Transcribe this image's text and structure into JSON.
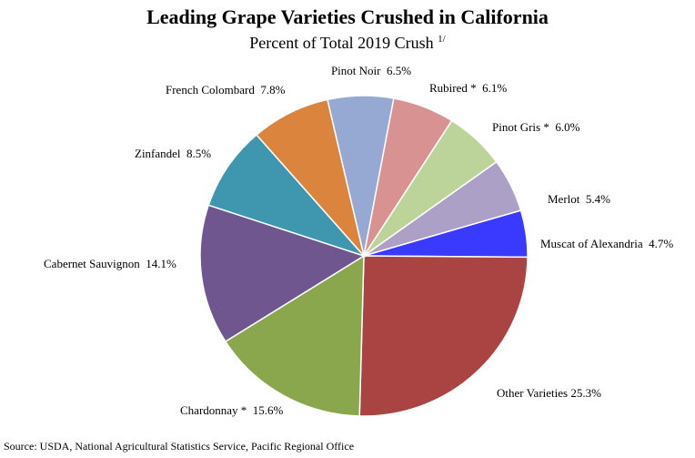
{
  "chart_data": {
    "type": "pie",
    "title": "Leading Grape Varieties Crushed in California",
    "subtitle": "Percent of Total 2019 Crush",
    "subtitle_footnote": "1/",
    "slices": [
      {
        "label": "Pinot Noir",
        "value": 6.5,
        "display": "Pinot Noir  6.5%",
        "color": "#95A9D3"
      },
      {
        "label": "Rubired *",
        "value": 6.1,
        "display": "Rubired *  6.1%",
        "color": "#D89292"
      },
      {
        "label": "Pinot Gris *",
        "value": 6.0,
        "display": "Pinot Gris *  6.0%",
        "color": "#BCD49A"
      },
      {
        "label": "Merlot",
        "value": 5.4,
        "display": "Merlot  5.4%",
        "color": "#ACA0C6"
      },
      {
        "label": "Muscat of Alexandria",
        "value": 4.7,
        "display": "Muscat of Alexandria  4.7%",
        "color": "#3A3AFF"
      },
      {
        "label": "Other Varieties",
        "value": 25.3,
        "display": "Other Varieties 25.3%",
        "color": "#A94442"
      },
      {
        "label": "Chardonnay *",
        "value": 15.6,
        "display": "Chardonnay *  15.6%",
        "color": "#8BA74E"
      },
      {
        "label": "Cabernet Sauvignon",
        "value": 14.1,
        "display": "Cabernet Sauvignon  14.1%",
        "color": "#6F568E"
      },
      {
        "label": "Zinfandel",
        "value": 8.5,
        "display": "Zinfandel  8.5%",
        "color": "#3F97AF"
      },
      {
        "label": "French Colombard",
        "value": 7.8,
        "display": "French Colombard  7.8%",
        "color": "#DB843D"
      }
    ]
  },
  "source": "Source: USDA, National Agricultural Statistics Service, Pacific  Regional  Office"
}
